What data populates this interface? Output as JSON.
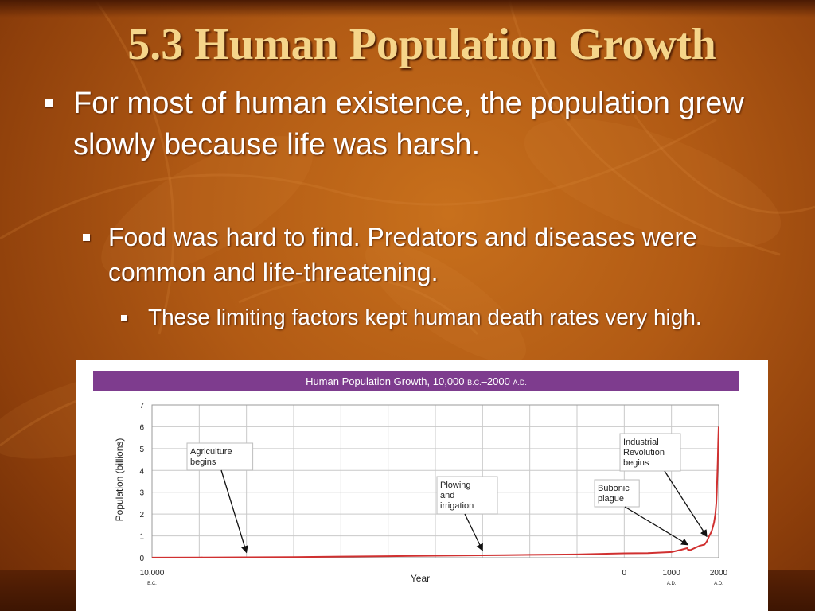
{
  "slide": {
    "title": "5.3 Human Population Growth",
    "bullets": [
      {
        "level": 1,
        "text": "For most of human existence, the population grew slowly because life was harsh."
      },
      {
        "level": 2,
        "text": "Food was hard to find. Predators and diseases were common and life-threatening."
      },
      {
        "level": 3,
        "text": "These limiting factors kept human death rates very high."
      }
    ]
  },
  "colors": {
    "background": "#b15a14",
    "title": "#f5d58a",
    "chart_header": "#7e3c8e",
    "series_line": "#d03030"
  },
  "chart_data": {
    "type": "line",
    "title_main": "Human Population Growth, 10,000 ",
    "title_bc": "B.C.",
    "title_mid": "–2000 ",
    "title_ad": "A.D.",
    "xlabel": "Year",
    "ylabel": "Population (billions)",
    "xlim": [
      -10000,
      2000
    ],
    "ylim": [
      0,
      7
    ],
    "yticks": [
      0,
      1,
      2,
      3,
      4,
      5,
      6,
      7
    ],
    "xticks": [
      {
        "value": -10000,
        "label": "10,000",
        "sub": "B.C."
      },
      {
        "value": 0,
        "label": "0",
        "sub": ""
      },
      {
        "value": 1000,
        "label": "1000",
        "sub": "A.D."
      },
      {
        "value": 2000,
        "label": "2000",
        "sub": "A.D."
      }
    ],
    "grid": true,
    "series": [
      {
        "x": [
          -10000,
          -9000,
          -8000,
          -7000,
          -6000,
          -5000,
          -4000,
          -3000,
          -2000,
          -1000,
          0,
          500,
          1000,
          1200,
          1340,
          1350,
          1400,
          1500,
          1600,
          1700,
          1750,
          1800,
          1850,
          1900,
          1930,
          1950,
          1960,
          1970,
          1980,
          1990,
          2000
        ],
        "y": [
          0.005,
          0.01,
          0.02,
          0.03,
          0.05,
          0.07,
          0.09,
          0.11,
          0.13,
          0.15,
          0.2,
          0.21,
          0.26,
          0.36,
          0.44,
          0.37,
          0.35,
          0.45,
          0.55,
          0.6,
          0.75,
          1.0,
          1.2,
          1.6,
          2.0,
          2.5,
          3.0,
          3.7,
          4.4,
          5.3,
          6.0
        ]
      }
    ],
    "annotations": [
      {
        "lines": [
          "Agriculture",
          "begins"
        ],
        "target_x": -8000
      },
      {
        "lines": [
          "Plowing",
          "and",
          "irrigation"
        ],
        "target_x": -3000
      },
      {
        "lines": [
          "Bubonic",
          "plague"
        ],
        "target_x": 1350
      },
      {
        "lines": [
          "Industrial",
          "Revolution",
          "begins"
        ],
        "target_x": 1750
      }
    ]
  }
}
